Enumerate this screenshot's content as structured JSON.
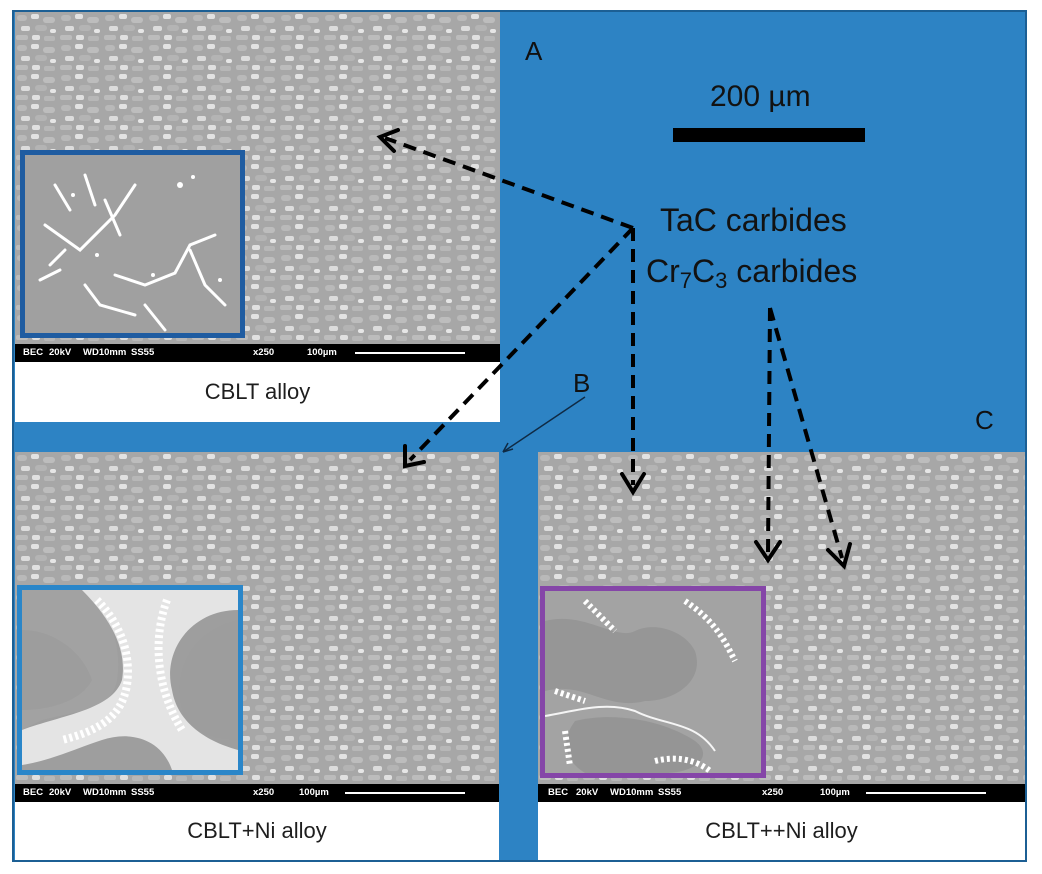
{
  "colors": {
    "background_blue": "#2d83c4",
    "inset_a": "#1f5ca1",
    "inset_b": "#2a86c9",
    "inset_c": "#8546a8"
  },
  "scale_bar": {
    "label": "200 µm"
  },
  "carbides": {
    "tac": "TaC carbides",
    "cr_prefix": "Cr",
    "cr_sub1": "7",
    "cr_mid": "C",
    "cr_sub2": "3",
    "cr_suffix": " carbides"
  },
  "panels": [
    {
      "letter": "A",
      "caption": "CBLT alloy"
    },
    {
      "letter": "B",
      "caption": "CBLT+Ni alloy"
    },
    {
      "letter": "C",
      "caption": "CBLT++Ni alloy"
    }
  ],
  "sem_bar": {
    "mode": "BEC",
    "voltage": "20kV",
    "working_distance": "WD10mm",
    "spot": "SS55",
    "magnification": "x250",
    "scale": "100µm"
  }
}
